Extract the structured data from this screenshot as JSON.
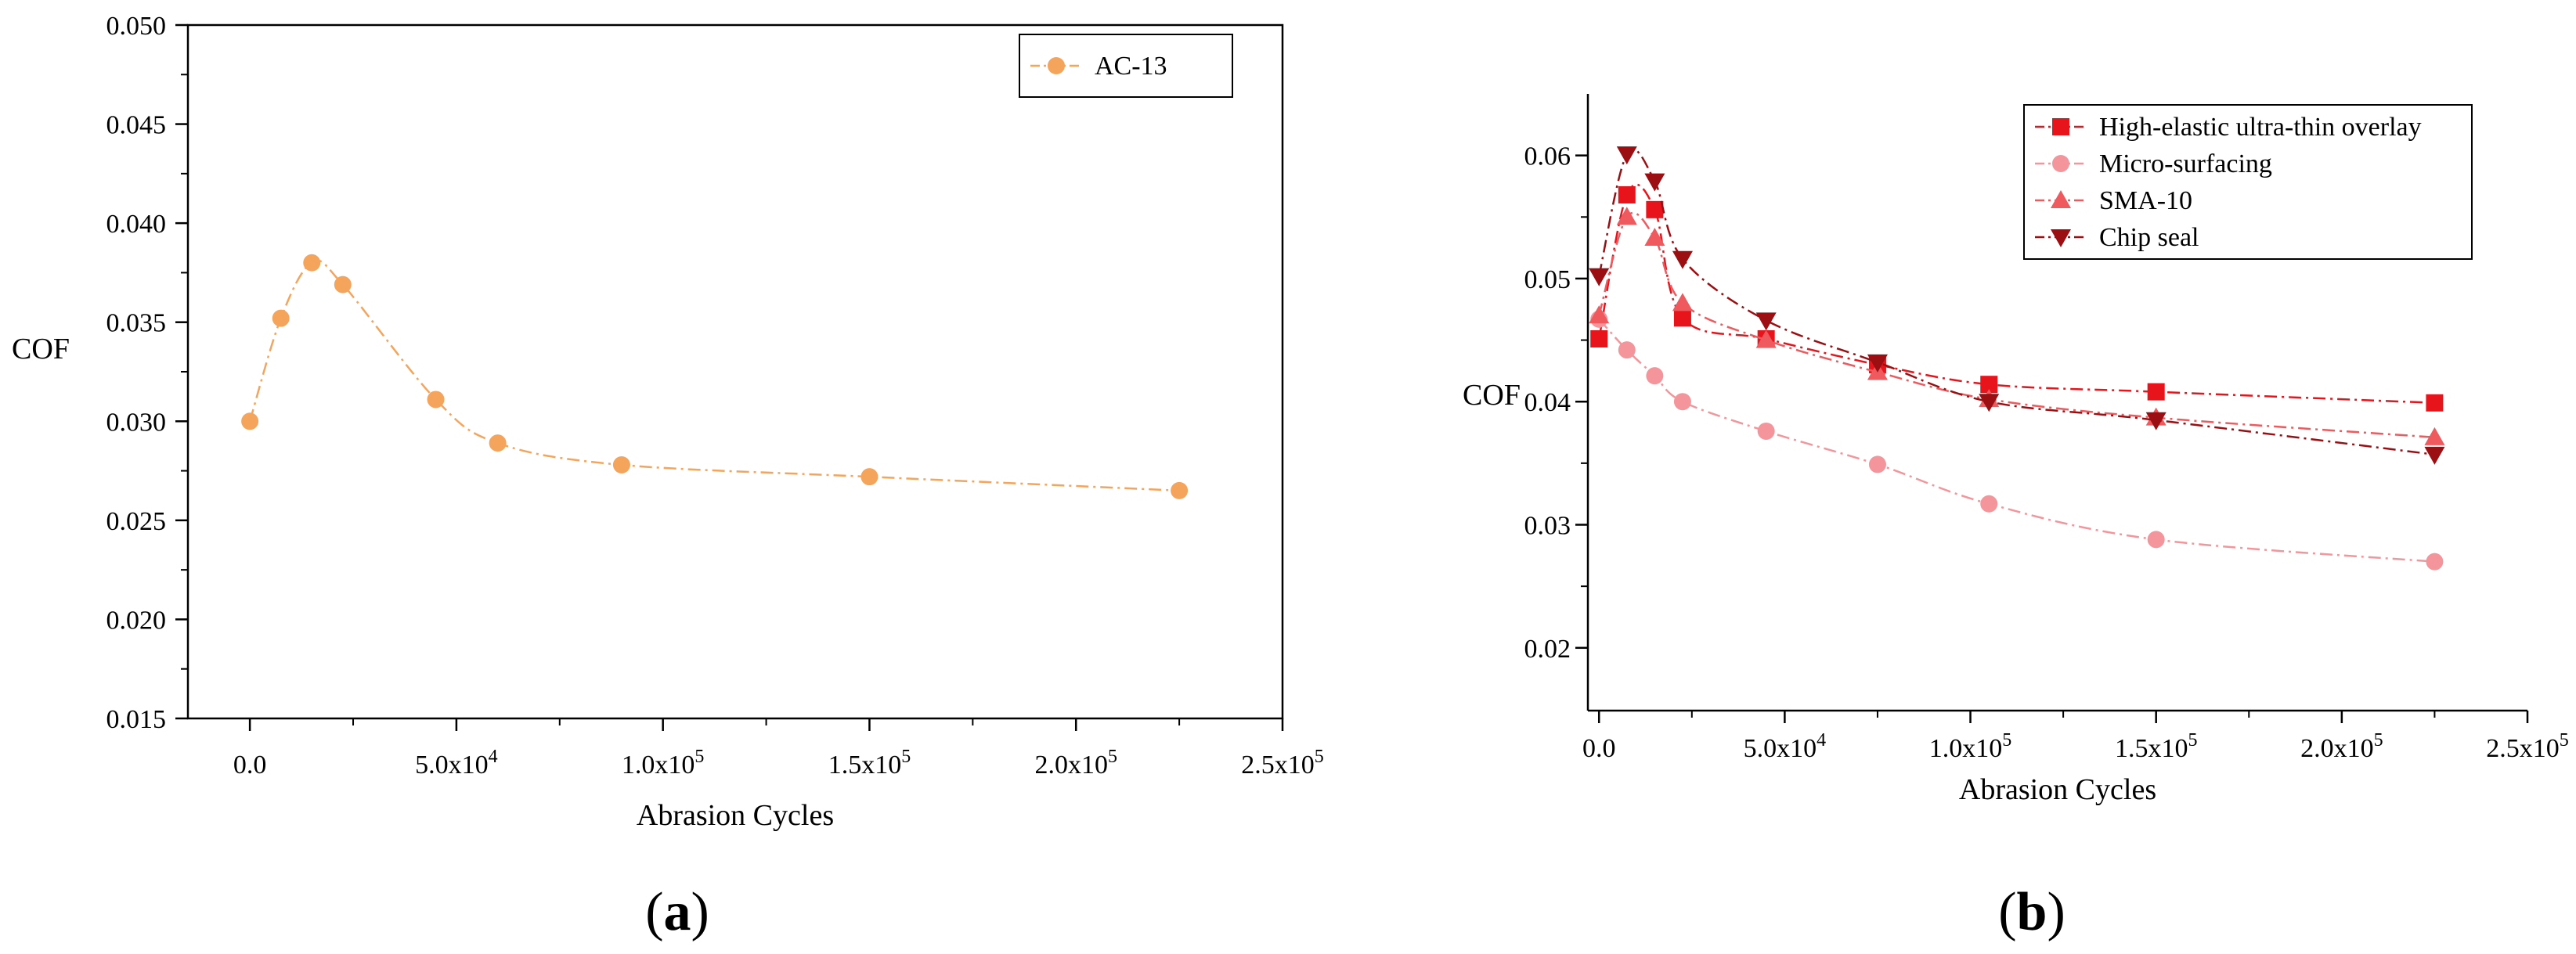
{
  "chart_data": [
    {
      "type": "line",
      "panel_label": "(a)",
      "panel_letter": "a",
      "xlabel": "Abrasion Cycles",
      "ylabel": "COF",
      "xlim": [
        -15000,
        250000
      ],
      "ylim": [
        0.015,
        0.05
      ],
      "x_ticks": [
        0,
        50000,
        100000,
        150000,
        200000,
        250000
      ],
      "x_tick_labels": [
        {
          "mantissa": "0.0",
          "exp": ""
        },
        {
          "mantissa": "5.0x10",
          "exp": "4"
        },
        {
          "mantissa": "1.0x10",
          "exp": "5"
        },
        {
          "mantissa": "1.5x10",
          "exp": "5"
        },
        {
          "mantissa": "2.0x10",
          "exp": "5"
        },
        {
          "mantissa": "2.5x10",
          "exp": "5"
        }
      ],
      "y_ticks": [
        0.015,
        0.02,
        0.025,
        0.03,
        0.035,
        0.04,
        0.045,
        0.05
      ],
      "y_tick_labels": [
        "0.015",
        "0.020",
        "0.025",
        "0.030",
        "0.035",
        "0.040",
        "0.045",
        "0.050"
      ],
      "legend_position": "top-right",
      "series": [
        {
          "name": "AC-13",
          "color": "#F5A45C",
          "marker": "circle",
          "x": [
            0,
            7500,
            15000,
            22500,
            45000,
            60000,
            90000,
            150000,
            225000
          ],
          "y": [
            0.03,
            0.0352,
            0.038,
            0.0369,
            0.0311,
            0.0289,
            0.0278,
            0.0272,
            0.0265
          ]
        }
      ]
    },
    {
      "type": "line",
      "panel_label": "(b)",
      "panel_letter": "b",
      "xlabel": "Abrasion Cycles",
      "ylabel": "COF",
      "xlim": [
        -3000,
        250000
      ],
      "ylim": [
        0.0149,
        0.065
      ],
      "x_ticks": [
        0,
        50000,
        100000,
        150000,
        200000,
        250000
      ],
      "x_tick_labels": [
        {
          "mantissa": "0.0",
          "exp": ""
        },
        {
          "mantissa": "5.0x10",
          "exp": "4"
        },
        {
          "mantissa": "1.0x10",
          "exp": "5"
        },
        {
          "mantissa": "1.5x10",
          "exp": "5"
        },
        {
          "mantissa": "2.0x10",
          "exp": "5"
        },
        {
          "mantissa": "2.5x10",
          "exp": "5"
        }
      ],
      "y_ticks": [
        0.02,
        0.03,
        0.04,
        0.05,
        0.06
      ],
      "y_tick_labels": [
        "0.02",
        "0.03",
        "0.04",
        "0.05",
        "0.06"
      ],
      "legend_position": "top-right",
      "series": [
        {
          "name": "High-elastic ultra-thin overlay",
          "color": "#E8141C",
          "marker": "square",
          "x": [
            0,
            7500,
            15000,
            22500,
            45000,
            75000,
            105000,
            150000,
            225000
          ],
          "y": [
            0.0451,
            0.0568,
            0.0556,
            0.0468,
            0.0451,
            0.043,
            0.0414,
            0.0408,
            0.0399
          ]
        },
        {
          "name": "Micro-surfacing",
          "color": "#F4959B",
          "marker": "circle",
          "x": [
            0,
            7500,
            15000,
            22500,
            45000,
            75000,
            105000,
            150000,
            225000
          ],
          "y": [
            0.0467,
            0.0442,
            0.0421,
            0.04,
            0.0376,
            0.0349,
            0.0317,
            0.0288,
            0.027
          ]
        },
        {
          "name": "SMA-10",
          "color": "#EE5A5E",
          "marker": "triangle-up",
          "x": [
            0,
            7500,
            15000,
            22500,
            45000,
            75000,
            105000,
            150000,
            225000
          ],
          "y": [
            0.047,
            0.055,
            0.0533,
            0.048,
            0.045,
            0.0424,
            0.0402,
            0.0387,
            0.0371
          ]
        },
        {
          "name": "Chip seal",
          "color": "#9B0E12",
          "marker": "triangle-down",
          "x": [
            0,
            7500,
            15000,
            22500,
            45000,
            75000,
            105000,
            150000,
            225000
          ],
          "y": [
            0.0502,
            0.0601,
            0.0579,
            0.0516,
            0.0466,
            0.0432,
            0.04,
            0.0385,
            0.0357
          ]
        }
      ]
    }
  ]
}
